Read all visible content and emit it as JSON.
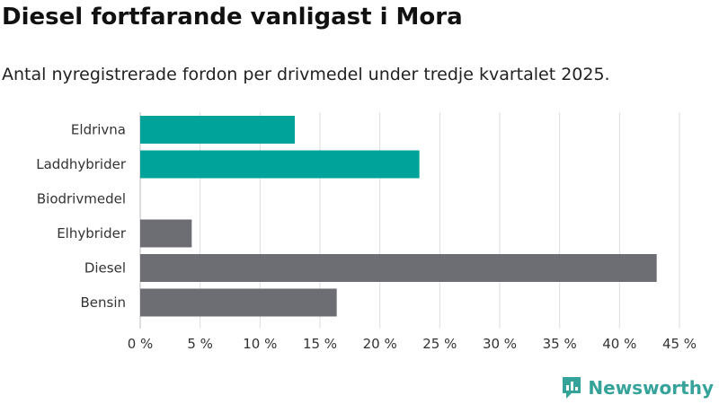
{
  "header": {
    "title": "Diesel fortfarande vanligast i Mora",
    "subtitle": "Antal nyregistrerade fordon per drivmedel under tredje kvartalet 2025."
  },
  "chart_data": {
    "type": "bar",
    "orientation": "horizontal",
    "title": "Diesel fortfarande vanligast i Mora",
    "subtitle": "Antal nyregistrerade fordon per drivmedel under tredje kvartalet 2025.",
    "xlabel": "",
    "ylabel": "",
    "xlim": [
      0,
      45
    ],
    "x_ticks": [
      0,
      5,
      10,
      15,
      20,
      25,
      30,
      35,
      40,
      45
    ],
    "x_tick_labels": [
      "0 %",
      "5 %",
      "10 %",
      "15 %",
      "20 %",
      "25 %",
      "30 %",
      "35 %",
      "40 %",
      "45 %"
    ],
    "grid": true,
    "categories": [
      "Eldrivna",
      "Laddhybrider",
      "Biodrivmedel",
      "Elhybrider",
      "Diesel",
      "Bensin"
    ],
    "values": [
      12.9,
      23.3,
      0,
      4.3,
      43.1,
      16.4
    ],
    "bar_colors": [
      "#00a39a",
      "#00a39a",
      "#00a39a",
      "#6d6d74",
      "#6d6d74",
      "#6d6d74"
    ]
  },
  "colors": {
    "green": "#00a39a",
    "gray": "#6d6d74",
    "grid": "#dddddd",
    "brand": "#36a39b"
  },
  "branding": {
    "name": "Newsworthy",
    "logo_icon": "bar-chart-icon"
  }
}
